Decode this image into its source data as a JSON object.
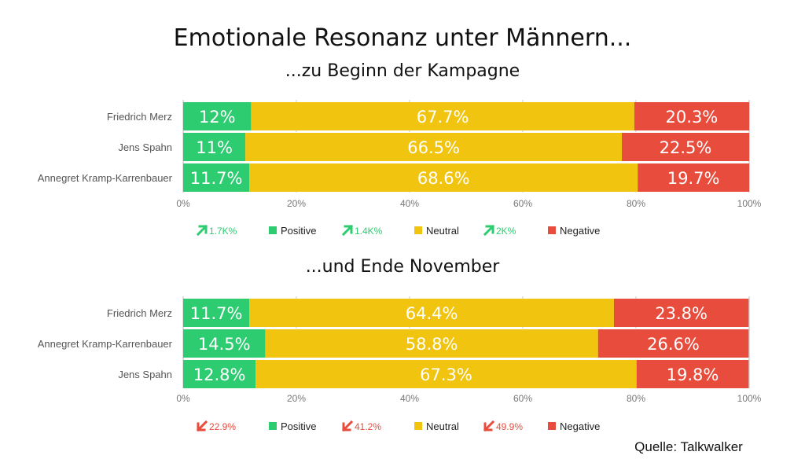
{
  "title": "Emotionale Resonanz unter Männern...",
  "source": "Quelle: Talkwalker",
  "colors": {
    "positive": "#2ecc71",
    "neutral": "#f1c40f",
    "negative": "#e74c3c",
    "up": "#2ecc71",
    "down": "#e74c3c"
  },
  "chart_data": [
    {
      "type": "bar",
      "orientation": "horizontal-stacked-100",
      "subtitle": "...zu Beginn der Kampagne",
      "categories": [
        "Friedrich Merz",
        "Jens Spahn",
        "Annegret Kramp-Karrenbauer"
      ],
      "series": [
        {
          "name": "Positive",
          "values": [
            12,
            11,
            11.7
          ],
          "labels": [
            "12%",
            "11%",
            "11.7%"
          ]
        },
        {
          "name": "Neutral",
          "values": [
            67.7,
            66.5,
            68.6
          ],
          "labels": [
            "67.7%",
            "66.5%",
            "68.6%"
          ]
        },
        {
          "name": "Negative",
          "values": [
            20.3,
            22.5,
            19.7
          ],
          "labels": [
            "20.3%",
            "22.5%",
            "19.7%"
          ]
        }
      ],
      "xlim": [
        0,
        100
      ],
      "xticks": [
        "0%",
        "20%",
        "40%",
        "60%",
        "80%",
        "100%"
      ],
      "legend": [
        {
          "delta": "1.7K%",
          "direction": "up",
          "name": "Positive"
        },
        {
          "delta": "1.4K%",
          "direction": "up",
          "name": "Neutral"
        },
        {
          "delta": "2K%",
          "direction": "up",
          "name": "Negative"
        }
      ]
    },
    {
      "type": "bar",
      "orientation": "horizontal-stacked-100",
      "subtitle": "...und Ende November",
      "categories": [
        "Friedrich Merz",
        "Annegret Kramp-Karrenbauer",
        "Jens Spahn"
      ],
      "series": [
        {
          "name": "Positive",
          "values": [
            11.7,
            14.5,
            12.8
          ],
          "labels": [
            "11.7%",
            "14.5%",
            "12.8%"
          ]
        },
        {
          "name": "Neutral",
          "values": [
            64.4,
            58.8,
            67.3
          ],
          "labels": [
            "64.4%",
            "58.8%",
            "67.3%"
          ]
        },
        {
          "name": "Negative",
          "values": [
            23.8,
            26.6,
            19.8
          ],
          "labels": [
            "23.8%",
            "26.6%",
            "19.8%"
          ]
        }
      ],
      "xlim": [
        0,
        100
      ],
      "xticks": [
        "0%",
        "20%",
        "40%",
        "60%",
        "80%",
        "100%"
      ],
      "legend": [
        {
          "delta": "22.9%",
          "direction": "down",
          "name": "Positive"
        },
        {
          "delta": "41.2%",
          "direction": "down",
          "name": "Neutral"
        },
        {
          "delta": "49.9%",
          "direction": "down",
          "name": "Negative"
        }
      ]
    }
  ]
}
